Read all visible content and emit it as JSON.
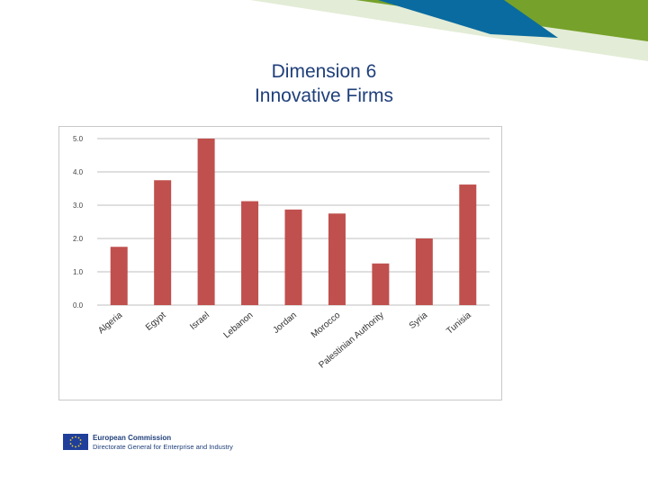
{
  "title": {
    "line1": "Dimension 6",
    "line2": "Innovative Firms"
  },
  "chart_data": {
    "type": "bar",
    "title": "",
    "xlabel": "",
    "ylabel": "",
    "categories": [
      "Algeria",
      "Egypt",
      "Israel",
      "Lebanon",
      "Jordan",
      "Morocco",
      "Palestinian Authority",
      "Syria",
      "Tunisia"
    ],
    "values": [
      1.75,
      3.75,
      5.0,
      3.12,
      2.87,
      2.75,
      1.25,
      2.0,
      3.62
    ],
    "yticks": [
      "0.0",
      "1.0",
      "2.0",
      "3.0",
      "4.0",
      "5.0"
    ],
    "ylim": [
      0,
      5
    ],
    "grid": true,
    "bar_color": "#c0504d"
  },
  "footer": {
    "org": "European Commission",
    "dept": "Directorate General for Enterprise and Industry"
  },
  "colors": {
    "title": "#1f3f7a",
    "deco_green": "#76a12a",
    "deco_blue": "#0a6ba0"
  }
}
